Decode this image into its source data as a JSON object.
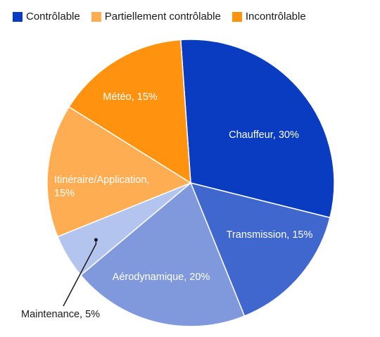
{
  "legend": [
    {
      "label": "Contrôlable",
      "color": "#0a3cc2"
    },
    {
      "label": "Partiellement contrôlable",
      "color": "#ffad52"
    },
    {
      "label": "Incontrôlable",
      "color": "#ff930f"
    }
  ],
  "chart_data": {
    "type": "pie",
    "slices": [
      {
        "label": [
          "Chauffeur, 30%"
        ],
        "value": 30,
        "color": "#0a3cc2",
        "group": "Contrôlable",
        "label_color": "#ffffff"
      },
      {
        "label": [
          "Transmission, 15%"
        ],
        "value": 15,
        "color": "#3f67cd",
        "group": "Contrôlable",
        "label_color": "#ffffff"
      },
      {
        "label": [
          "Aérodynamique, 20%"
        ],
        "value": 20,
        "color": "#7f99dc",
        "group": "Contrôlable",
        "label_color": "#ffffff"
      },
      {
        "label": [
          "Maintenance, 5%"
        ],
        "value": 5,
        "color": "#b3c4ee",
        "group": "Contrôlable",
        "label_color": "#1a1a1a",
        "outside": true
      },
      {
        "label": [
          "Itinéraire/Application,",
          "15%"
        ],
        "value": 15,
        "color": "#ffad52",
        "group": "Partiellement contrôlable",
        "label_color": "#ffffff"
      },
      {
        "label": [
          "Météo, 15%"
        ],
        "value": 15,
        "color": "#ff930f",
        "group": "Incontrôlable",
        "label_color": "#ffffff"
      }
    ]
  }
}
